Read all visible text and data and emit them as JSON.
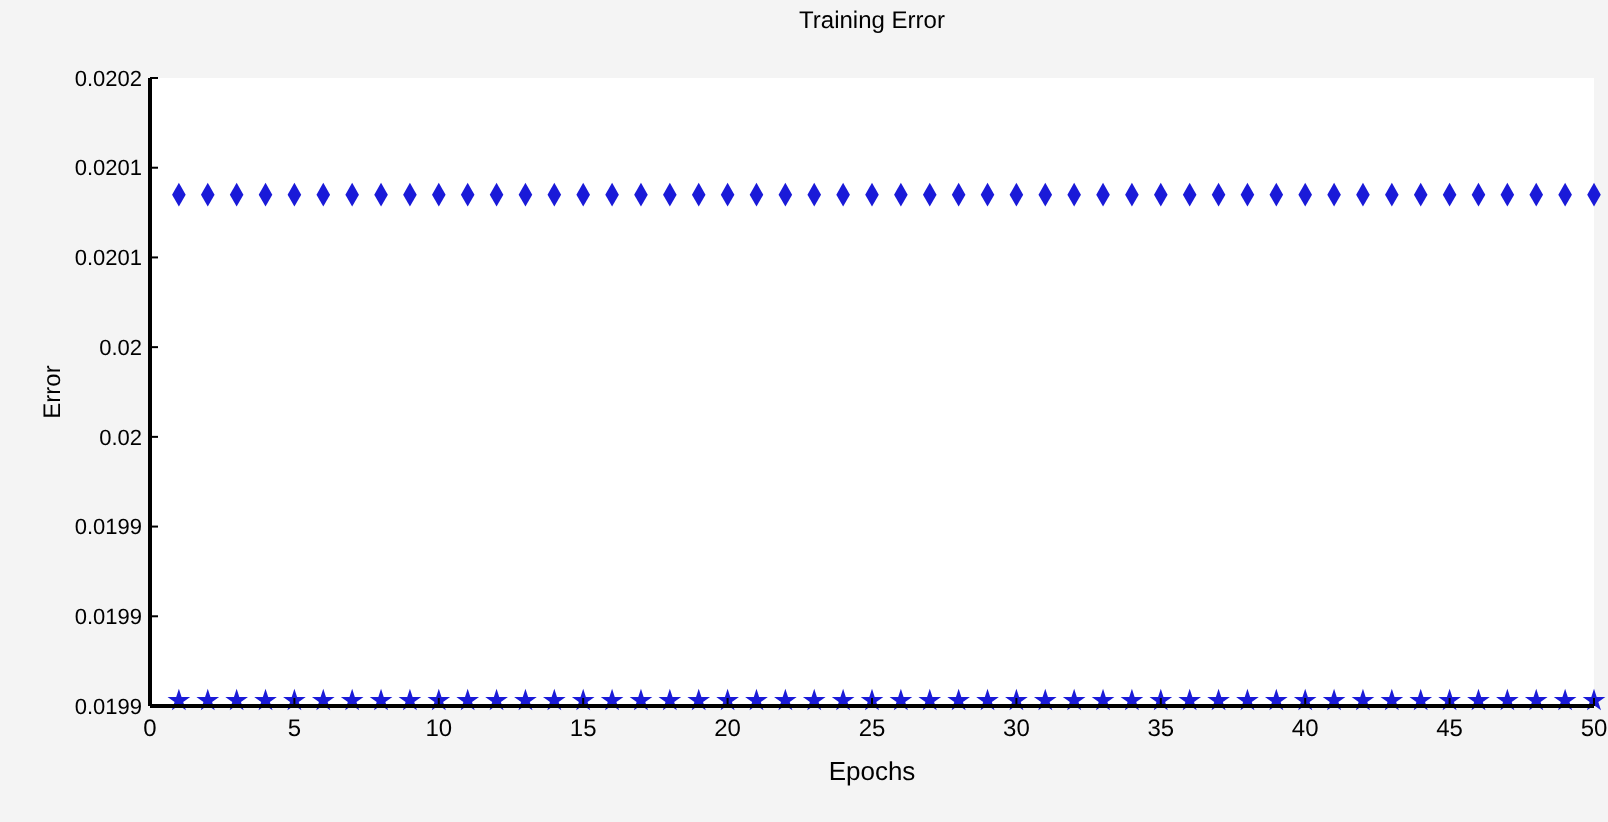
{
  "chart_data": {
    "type": "scatter",
    "title": "Training Error",
    "xlabel": "Epochs",
    "ylabel": "Error",
    "x": [
      1,
      2,
      3,
      4,
      5,
      6,
      7,
      8,
      9,
      10,
      11,
      12,
      13,
      14,
      15,
      16,
      17,
      18,
      19,
      20,
      21,
      22,
      23,
      24,
      25,
      26,
      27,
      28,
      29,
      30,
      31,
      32,
      33,
      34,
      35,
      36,
      37,
      38,
      39,
      40,
      41,
      42,
      43,
      44,
      45,
      46,
      47,
      48,
      49,
      50
    ],
    "series": [
      {
        "color": "#1a1ad8",
        "marker": "diamond",
        "values": [
          0.020135,
          0.020135,
          0.020135,
          0.020135,
          0.020135,
          0.020135,
          0.020135,
          0.020135,
          0.020135,
          0.020135,
          0.020135,
          0.020135,
          0.020135,
          0.020135,
          0.020135,
          0.020135,
          0.020135,
          0.020135,
          0.020135,
          0.020135,
          0.020135,
          0.020135,
          0.020135,
          0.020135,
          0.020135,
          0.020135,
          0.020135,
          0.020135,
          0.020135,
          0.020135,
          0.020135,
          0.020135,
          0.020135,
          0.020135,
          0.020135,
          0.020135,
          0.020135,
          0.020135,
          0.020135,
          0.020135,
          0.020135,
          0.020135,
          0.020135,
          0.020135,
          0.020135,
          0.020135,
          0.020135,
          0.020135,
          0.020135,
          0.020135
        ]
      },
      {
        "color": "#1a1ad8",
        "marker": "star",
        "values": [
          0.019853,
          0.019853,
          0.019853,
          0.019853,
          0.019853,
          0.019853,
          0.019853,
          0.019853,
          0.019853,
          0.019853,
          0.019853,
          0.019853,
          0.019853,
          0.019853,
          0.019853,
          0.019853,
          0.019853,
          0.019853,
          0.019853,
          0.019853,
          0.019853,
          0.019853,
          0.019853,
          0.019853,
          0.019853,
          0.019853,
          0.019853,
          0.019853,
          0.019853,
          0.019853,
          0.019853,
          0.019853,
          0.019853,
          0.019853,
          0.019853,
          0.019853,
          0.019853,
          0.019853,
          0.019853,
          0.019853,
          0.019853,
          0.019853,
          0.019853,
          0.019853,
          0.019853,
          0.019853,
          0.019853,
          0.019853,
          0.019853,
          0.019853
        ]
      }
    ],
    "xlim": [
      0,
      50
    ],
    "xticks": [
      0,
      5,
      10,
      15,
      20,
      25,
      30,
      35,
      40,
      45,
      50
    ],
    "ylim": [
      0.01985,
      0.0202
    ],
    "yticks": [
      {
        "value": 0.01985,
        "label": "0.0199"
      },
      {
        "value": 0.0199,
        "label": "0.0199"
      },
      {
        "value": 0.01995,
        "label": "0.0199"
      },
      {
        "value": 0.02,
        "label": "0.02"
      },
      {
        "value": 0.02005,
        "label": "0.02"
      },
      {
        "value": 0.0201,
        "label": "0.0201"
      },
      {
        "value": 0.02015,
        "label": "0.0201"
      },
      {
        "value": 0.0202,
        "label": "0.0202"
      }
    ],
    "grid": false
  }
}
